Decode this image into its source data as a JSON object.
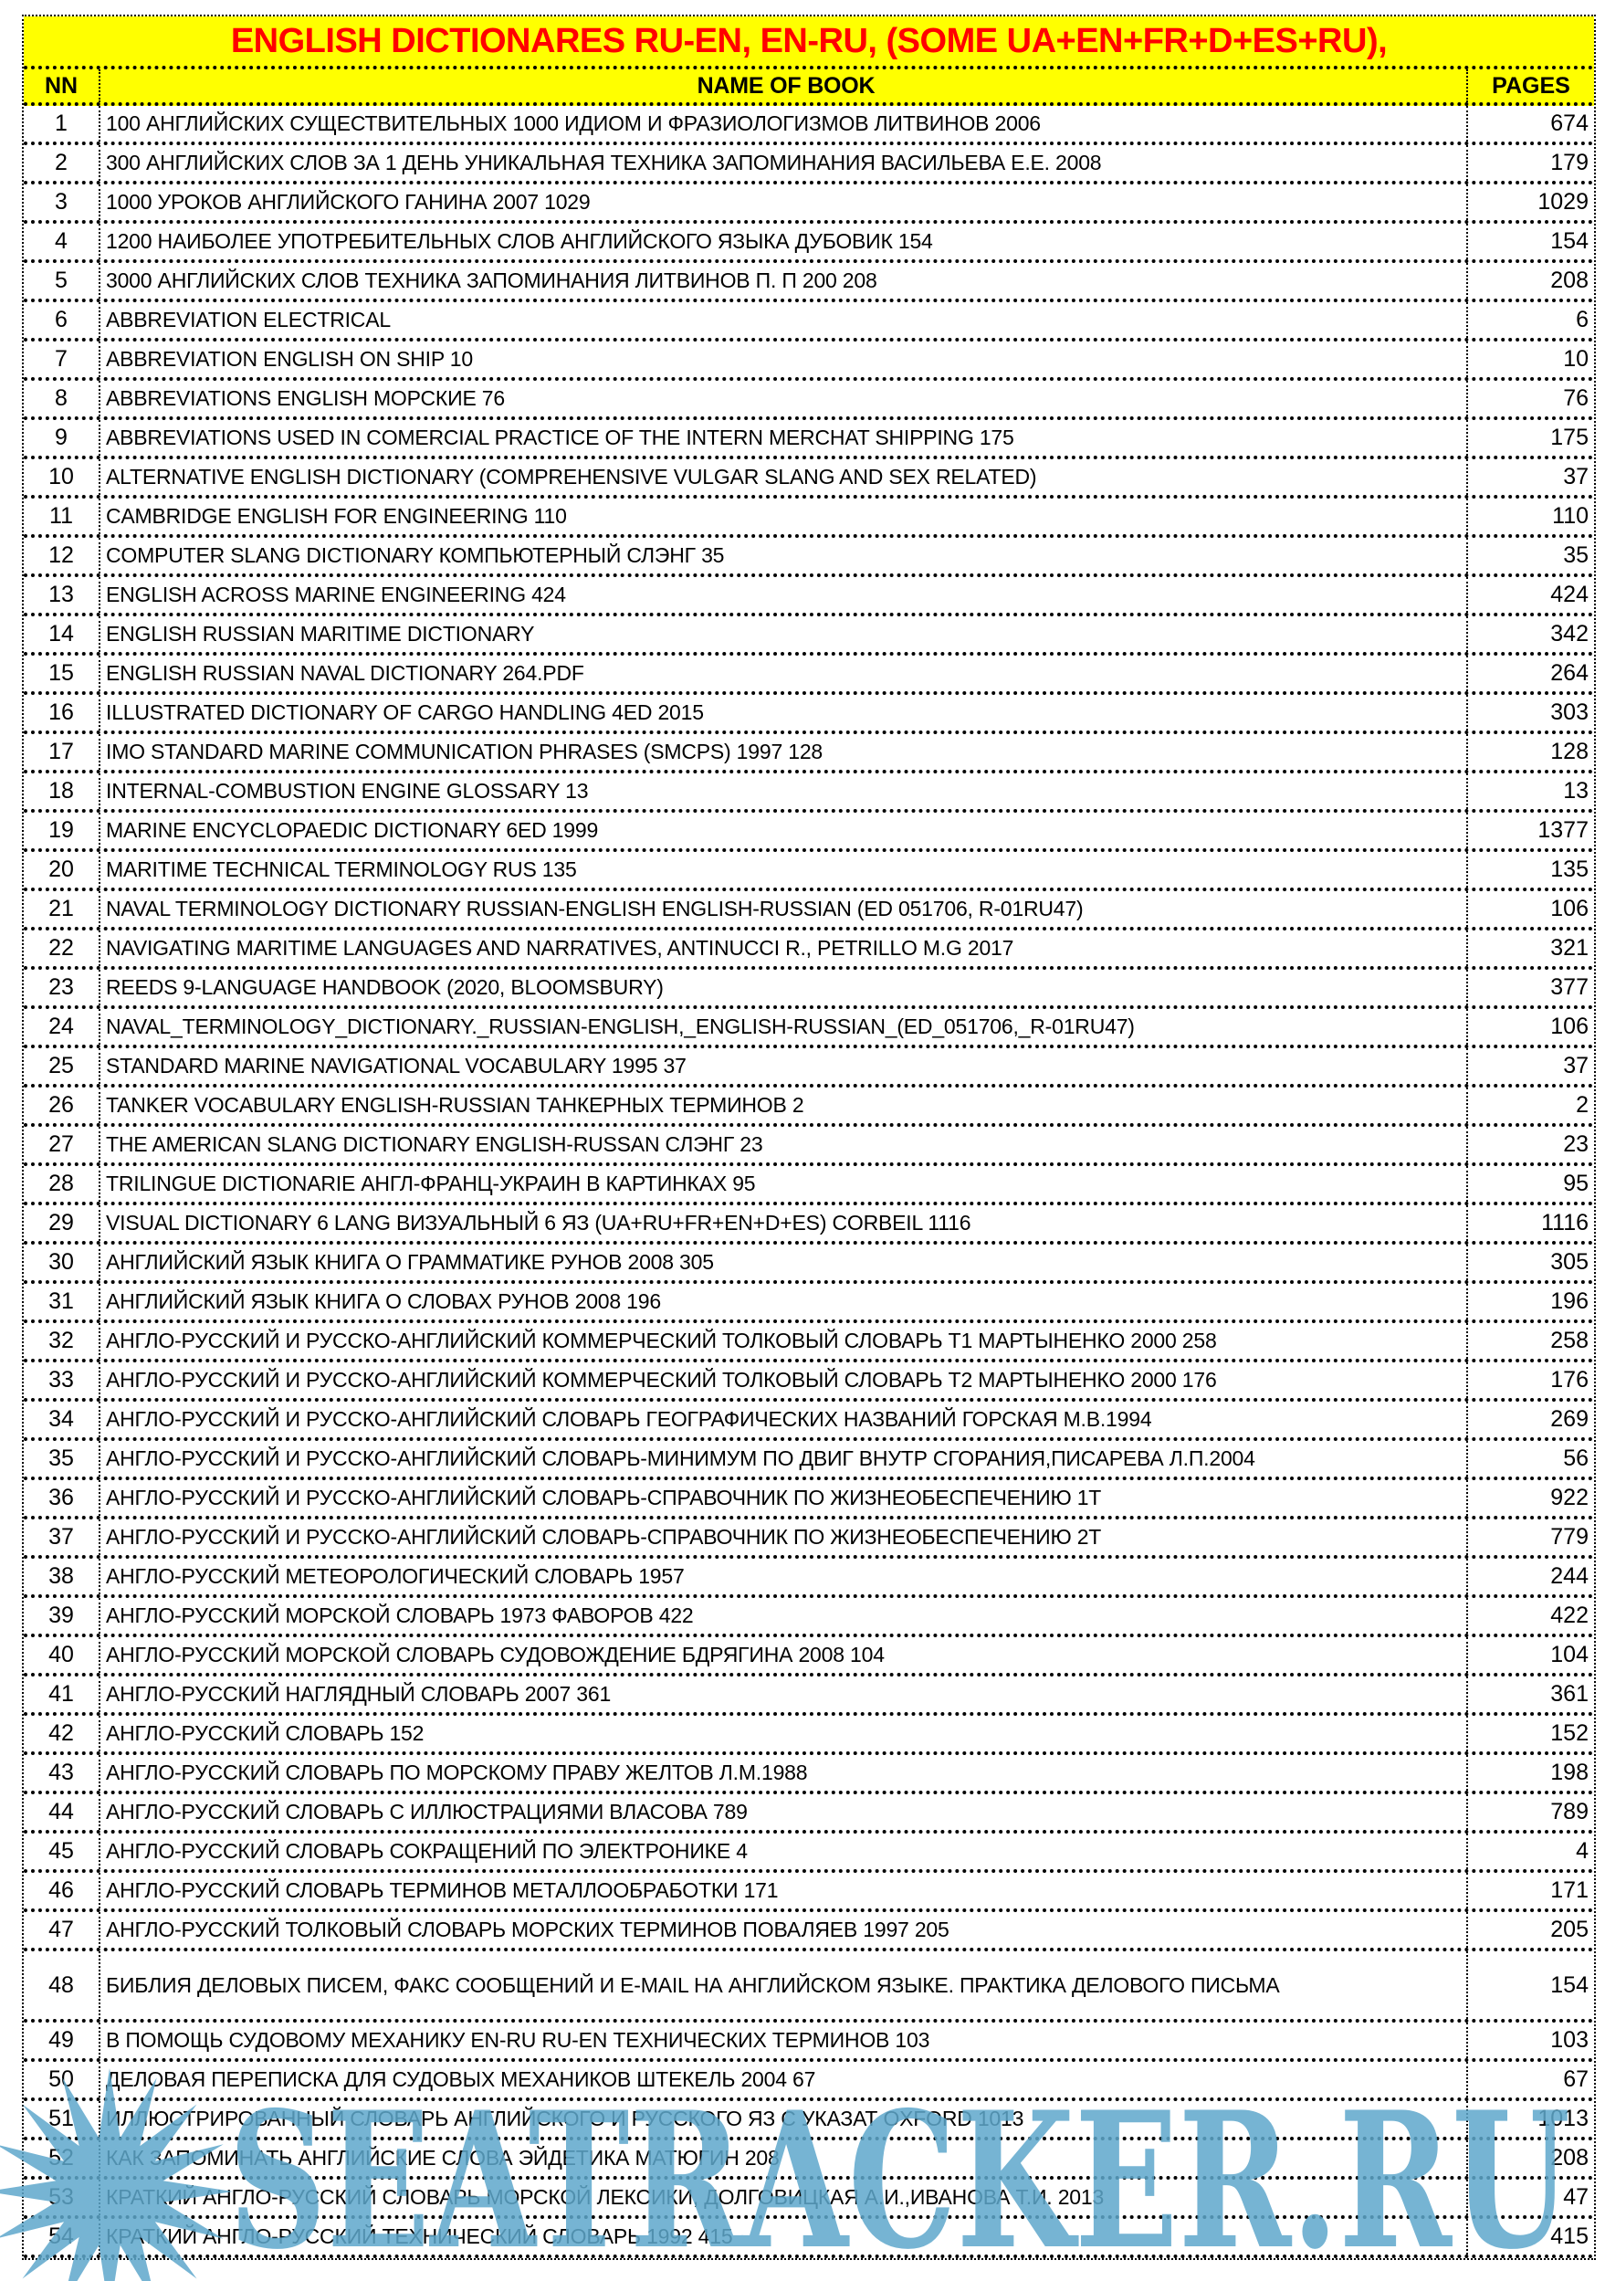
{
  "title": "ENGLISH DICTIONARES  RU-EN, EN-RU, (SOME UA+EN+FR+D+ES+RU),",
  "columns": {
    "nn": "NN",
    "name": "NAME OF BOOK",
    "pages": "PAGES"
  },
  "colors": {
    "header_bg": "#ffff00",
    "title_text": "#ff0000",
    "watermark": "#5fa8cc"
  },
  "watermark": {
    "text": "SEATRACKER.RU",
    "icon": "starburst-logo-icon"
  },
  "rows": [
    {
      "nn": "1",
      "name": "100 АНГЛИЙСКИХ СУЩЕСТВИТЕЛЬНЫХ 1000 ИДИОМ И ФРАЗИОЛОГИЗМОВ ЛИТВИНОВ 2006",
      "pages": "674"
    },
    {
      "nn": "2",
      "name": "300 АНГЛИЙСКИХ СЛОВ ЗА 1 ДЕНЬ УНИКАЛЬНАЯ ТЕХНИКА ЗАПОМИНАНИЯ ВАСИЛЬЕВА Е.Е. 2008",
      "pages": "179"
    },
    {
      "nn": "3",
      "name": "1000 УРОКОВ АНГЛИЙСКОГО ГАНИНА 2007    1029",
      "pages": "1029"
    },
    {
      "nn": "4",
      "name": "1200 НАИБОЛЕЕ УПОТРЕБИТЕЛЬНЫХ СЛОВ АНГЛИЙСКОГО ЯЗЫКА ДУБОВИК    154",
      "pages": "154"
    },
    {
      "nn": "5",
      "name": "3000 АНГЛИЙСКИХ СЛОВ ТЕХНИКА ЗАПОМИНАНИЯ ЛИТВИНОВ П. П 200  208",
      "pages": "208"
    },
    {
      "nn": "6",
      "name": "ABBREVIATION ELECTRICAL",
      "pages": "6"
    },
    {
      "nn": "7",
      "name": "ABBREVIATION ENGLISH ON SHIP    10",
      "pages": "10"
    },
    {
      "nn": "8",
      "name": "ABBREVIATIONS ENGLISH МОРСКИЕ    76",
      "pages": "76"
    },
    {
      "nn": "9",
      "name": "ABBREVIATIONS USED IN COMERCIAL PRACTICE OF THE INTERN MERCHAT SHIPPING    175",
      "pages": "175"
    },
    {
      "nn": "10",
      "name": "ALTERNATIVE ENGLISH DICTIONARY (COMPREHENSIVE VULGAR SLANG AND SEX RELATED)",
      "pages": "37"
    },
    {
      "nn": "11",
      "name": "CAMBRIDGE ENGLISH FOR ENGINEERING    110",
      "pages": "110"
    },
    {
      "nn": "12",
      "name": "COMPUTER SLANG DICTIONARY КОМПЬЮТЕРНЫЙ СЛЭНГ    35",
      "pages": "35"
    },
    {
      "nn": "13",
      "name": "ENGLISH ACROSS MARINE ENGINEERING  424",
      "pages": "424"
    },
    {
      "nn": "14",
      "name": "ENGLISH RUSSIAN MARITIME DICTIONARY",
      "pages": "342"
    },
    {
      "nn": "15",
      "name": "ENGLISH RUSSIAN NAVAL DICTIONARY    264.PDF",
      "pages": "264"
    },
    {
      "nn": "16",
      "name": "ILLUSTRATED DICTIONARY OF CARGO HANDLING 4ED 2015",
      "pages": "303"
    },
    {
      "nn": "17",
      "name": "IMO STANDARD MARINE COMMUNICATION PHRASES (SMCPS) 1997  128",
      "pages": "128"
    },
    {
      "nn": "18",
      "name": "INTERNAL-COMBUSTION ENGINE GLOSSARY    13",
      "pages": "13"
    },
    {
      "nn": "19",
      "name": "MARINE ENCYCLOPAEDIC DICTIONARY 6ED 1999",
      "pages": "1377"
    },
    {
      "nn": "20",
      "name": "MARITIME TECHNICAL TERMINOLOGY RUS    135",
      "pages": "135"
    },
    {
      "nn": "21",
      "name": "NAVAL TERMINOLOGY DICTIONARY RUSSIAN-ENGLISH ENGLISH-RUSSIAN (ED 051706, R-01RU47)",
      "pages": "106"
    },
    {
      "nn": "22",
      "name": "NAVIGATING MARITIME LANGUAGES AND NARRATIVES, ANTINUCCI R., PETRILLO M.G 2017",
      "pages": "321"
    },
    {
      "nn": "23",
      "name": "REEDS 9-LANGUAGE HANDBOOK (2020, BLOOMSBURY)",
      "pages": "377"
    },
    {
      "nn": "24",
      "name": "NAVAL_TERMINOLOGY_DICTIONARY._RUSSIAN-ENGLISH,_ENGLISH-RUSSIAN_(ED_051706,_R-01RU47)",
      "pages": "106"
    },
    {
      "nn": "25",
      "name": "STANDARD MARINE NAVIGATIONAL VOCABULARY 1995     37",
      "pages": "37"
    },
    {
      "nn": "26",
      "name": "TANKER VOCABULARY ENGLISH-RUSSIAN ТАНКЕРНЫХ ТЕРМИНОВ  2",
      "pages": "2"
    },
    {
      "nn": "27",
      "name": "THE AMERICAN SLANG DICTIONARY ENGLISH-RUSSAN СЛЭНГ     23",
      "pages": "23"
    },
    {
      "nn": "28",
      "name": "TRILINGUE DICTIONARIE АНГЛ-ФРАНЦ-УКРАИН В КАРТИНКАХ    95",
      "pages": "95"
    },
    {
      "nn": "29",
      "name": "VISUAL DICTIONARY 6 LANG ВИЗУАЛЬНЫЙ 6 ЯЗ (UA+RU+FR+EN+D+ES) CORBEIL  1116",
      "pages": "1116"
    },
    {
      "nn": "30",
      "name": "АНГЛИЙСКИЙ ЯЗЫК КНИГА О ГРАММАТИКЕ РУНОВ 2008     305",
      "pages": "305"
    },
    {
      "nn": "31",
      "name": "АНГЛИЙСКИЙ ЯЗЫК КНИГА О СЛОВАХ РУНОВ 2008    196",
      "pages": "196"
    },
    {
      "nn": "32",
      "name": "АНГЛО-РУССКИЙ И РУССКО-АНГЛИЙСКИЙ КОММЕРЧЕСКИЙ ТОЛКОВЫЙ СЛОВАРЬ Т1 МАРТЫНЕНКО 2000    258",
      "pages": "258"
    },
    {
      "nn": "33",
      "name": "АНГЛО-РУССКИЙ И РУССКО-АНГЛИЙСКИЙ КОММЕРЧЕСКИЙ ТОЛКОВЫЙ СЛОВАРЬ Т2 МАРТЫНЕНКО 2000    176",
      "pages": "176"
    },
    {
      "nn": "34",
      "name": "АНГЛО-РУССКИЙ И РУССКО-АНГЛИЙСКИЙ СЛОВАРЬ ГЕОГРАФИЧЕСКИХ НАЗВАНИЙ ГОРСКАЯ М.В.1994",
      "pages": "269"
    },
    {
      "nn": "35",
      "name": "АНГЛО-РУССКИЙ И РУССКО-АНГЛИЙСКИЙ СЛОВАРЬ-МИНИМУМ ПО ДВИГ ВНУТР СГОРАНИЯ,ПИСАРЕВА Л.П.2004",
      "pages": "56"
    },
    {
      "nn": "36",
      "name": "АНГЛО-РУССКИЙ И РУССКО-АНГЛИЙСКИЙ СЛОВАРЬ-СПРАВОЧНИК ПО ЖИЗНЕОБЕСПЕЧЕНИЮ 1Т",
      "pages": "922"
    },
    {
      "nn": "37",
      "name": "АНГЛО-РУССКИЙ И РУССКО-АНГЛИЙСКИЙ СЛОВАРЬ-СПРАВОЧНИК ПО ЖИЗНЕОБЕСПЕЧЕНИЮ 2Т",
      "pages": "779"
    },
    {
      "nn": "38",
      "name": "АНГЛО-РУССКИЙ МЕТЕОРОЛОГИЧЕСКИЙ СЛОВАРЬ 1957",
      "pages": "244"
    },
    {
      "nn": "39",
      "name": "АНГЛО-РУССКИЙ МОРСКОЙ СЛОВАРЬ 1973 ФАВОРОВ    422",
      "pages": "422"
    },
    {
      "nn": "40",
      "name": "АНГЛО-РУССКИЙ МОРСКОЙ СЛОВАРЬ СУДОВОЖДЕНИЕ БДРЯГИНА  2008    104",
      "pages": "104"
    },
    {
      "nn": "41",
      "name": "АНГЛО-РУССКИЙ НАГЛЯДНЫЙ СЛОВАРЬ 2007    361",
      "pages": "361"
    },
    {
      "nn": "42",
      "name": "АНГЛО-РУССКИЙ СЛОВАРЬ    152",
      "pages": "152"
    },
    {
      "nn": "43",
      "name": "АНГЛО-РУССКИЙ СЛОВАРЬ ПО МОРСКОМУ ПРАВУ ЖЕЛТОВ Л.М.1988",
      "pages": "198"
    },
    {
      "nn": "44",
      "name": "АНГЛО-РУССКИЙ СЛОВАРЬ С ИЛЛЮСТРАЦИЯМИ ВЛАСОВА     789",
      "pages": "789"
    },
    {
      "nn": "45",
      "name": "АНГЛО-РУССКИЙ СЛОВАРЬ СОКРАЩЕНИЙ ПО ЭЛЕКТРОНИКЕ    4",
      "pages": "4"
    },
    {
      "nn": "46",
      "name": "АНГЛО-РУССКИЙ СЛОВАРЬ ТЕРМИНОВ МЕТАЛЛООБРАБОТКИ   171",
      "pages": "171"
    },
    {
      "nn": "47",
      "name": "АНГЛО-РУССКИЙ ТОЛКОВЫЙ СЛОВАРЬ МОРСКИХ ТЕРМИНОВ ПОВАЛЯЕВ 1997  205",
      "pages": "205"
    },
    {
      "nn": "48",
      "name": "БИБЛИЯ ДЕЛОВЫХ ПИСЕМ, ФАКС СООБЩЕНИЙ И E-MAIL НА АНГЛИЙСКОМ ЯЗЫКЕ. ПРАКТИКА ДЕЛОВОГО ПИСЬМА",
      "pages": "154",
      "tall": true
    },
    {
      "nn": "49",
      "name": "В ПОМОЩЬ СУДОВОМУ МЕХАНИКУ EN-RU RU-EN ТЕХНИЧЕСКИХ ТЕРМИНОВ  103",
      "pages": "103"
    },
    {
      "nn": "50",
      "name": "ДЕЛОВАЯ ПЕРЕПИСКА ДЛЯ СУДОВЫХ МЕХАНИКОВ ШТЕКЕЛЬ 2004    67",
      "pages": "67"
    },
    {
      "nn": "51",
      "name": "ИЛЛЮСТРИРОВАННЫЙ СЛОВАРЬ АНГЛИЙСКОГО И РУССКОГО ЯЗ  С УКАЗАТ  OXFORD  1013",
      "pages": "1013"
    },
    {
      "nn": "52",
      "name": "КАК ЗАПОМИНАТЬ АНГЛИЙСКИЕ СЛОВА ЭЙДЕТИКА МАТЮГИН   208",
      "pages": "208"
    },
    {
      "nn": "53",
      "name": "КРАТКИЙ АНГЛО-РУССКИЙ СЛОВАРЬ МОРСКОЙ ЛЕКСИКИ, ДОЛГОВИЦКАЯ А.И.,ИВАНОВА Т.И.  2013",
      "pages": "47"
    },
    {
      "nn": "54",
      "name": "КРАТКИЙ АНГЛО-РУССКИЙ ТЕХНИЧЕСКИЙ СЛОВАРЬ 1992   415",
      "pages": "415"
    }
  ]
}
